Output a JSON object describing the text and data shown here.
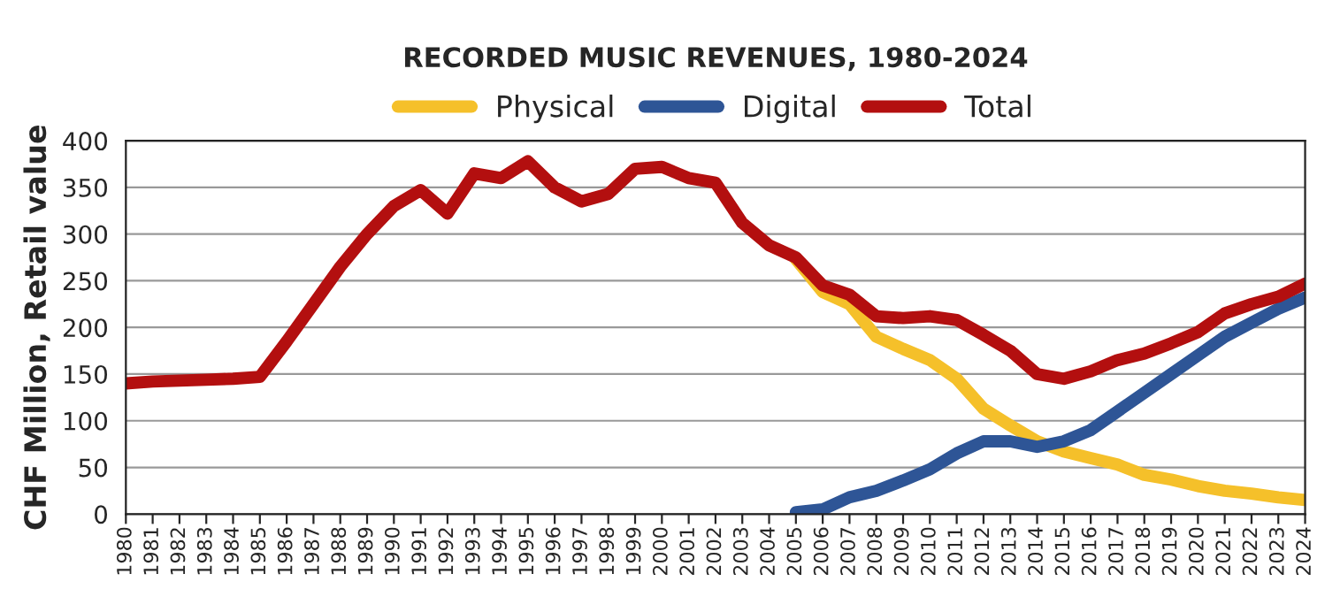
{
  "chart_data": {
    "type": "line",
    "title": "RECORDED MUSIC REVENUES, 1980-2024",
    "ylabel": "CHF Million, Retail value",
    "categories": [
      "1980",
      "1981",
      "1982",
      "1983",
      "1984",
      "1985",
      "1986",
      "1987",
      "1988",
      "1989",
      "1990",
      "1991",
      "1992",
      "1993",
      "1994",
      "1995",
      "1996",
      "1997",
      "1998",
      "1999",
      "2000",
      "2001",
      "2002",
      "2003",
      "2004",
      "2005",
      "2006",
      "2007",
      "2008",
      "2009",
      "2010",
      "2011",
      "2012",
      "2013",
      "2014",
      "2015",
      "2016",
      "2017",
      "2018",
      "2019",
      "2020",
      "2021",
      "2022",
      "2023",
      "2024"
    ],
    "series": [
      {
        "name": "Physical",
        "color": "#f5c02a",
        "values": [
          null,
          null,
          null,
          null,
          null,
          null,
          null,
          null,
          null,
          null,
          null,
          null,
          null,
          null,
          null,
          null,
          null,
          null,
          null,
          null,
          null,
          null,
          null,
          null,
          null,
          273,
          238,
          225,
          190,
          177,
          165,
          145,
          113,
          95,
          78,
          67,
          60,
          53,
          42,
          37,
          30,
          25,
          22,
          18,
          15
        ]
      },
      {
        "name": "Digital",
        "color": "#2e5596",
        "values": [
          null,
          null,
          null,
          null,
          null,
          null,
          null,
          null,
          null,
          null,
          null,
          null,
          null,
          null,
          null,
          null,
          null,
          null,
          null,
          null,
          null,
          null,
          null,
          null,
          null,
          2,
          5,
          18,
          25,
          36,
          48,
          65,
          78,
          78,
          72,
          78,
          90,
          110,
          130,
          150,
          170,
          190,
          205,
          220,
          232
        ]
      },
      {
        "name": "Total",
        "color": "#b30f0f",
        "values": [
          140,
          142,
          143,
          144,
          145,
          147,
          185,
          225,
          265,
          300,
          330,
          347,
          322,
          365,
          360,
          378,
          350,
          335,
          343,
          370,
          372,
          360,
          355,
          312,
          288,
          275,
          245,
          235,
          212,
          210,
          212,
          208,
          192,
          175,
          150,
          145,
          153,
          165,
          172,
          183,
          195,
          215,
          225,
          233,
          247
        ]
      }
    ],
    "ylim": [
      0,
      400
    ],
    "yticks": [
      0,
      50,
      100,
      150,
      200,
      250,
      300,
      350,
      400
    ],
    "grid": "y",
    "legend": "top",
    "marker": "none",
    "line_style": "solid"
  }
}
